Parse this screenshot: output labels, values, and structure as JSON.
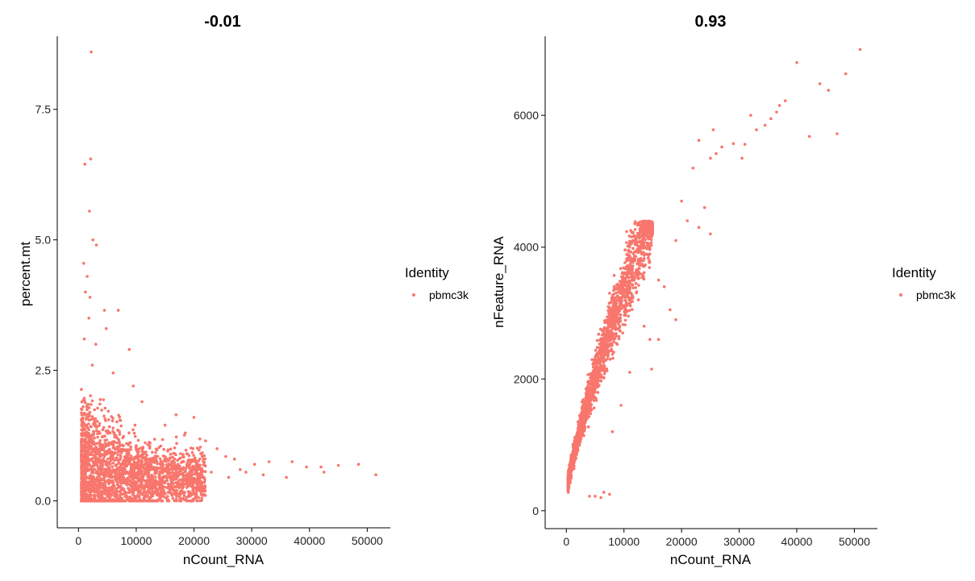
{
  "chart_data": [
    {
      "type": "scatter",
      "title": "-0.01",
      "xlabel": "nCount_RNA",
      "ylabel": "percent.mt",
      "xlim": [
        -2000,
        54000
      ],
      "ylim": [
        -0.3,
        8.9
      ],
      "xticks": [
        0,
        10000,
        20000,
        30000,
        40000,
        50000
      ],
      "xtick_labels": [
        "0",
        "10000",
        "20000",
        "30000",
        "40000",
        "50000"
      ],
      "yticks": [
        0.0,
        2.5,
        5.0,
        7.5
      ],
      "ytick_labels": [
        "0.0",
        "2.5",
        "5.0",
        "7.5"
      ],
      "legend": {
        "title": "Identity",
        "items": [
          "pbmc3k"
        ],
        "placement": "right"
      },
      "series": [
        {
          "name": "pbmc3k",
          "color": "#F8766D",
          "points": [
            [
              2200,
              8.6
            ],
            [
              1100,
              6.45
            ],
            [
              2100,
              6.55
            ],
            [
              1900,
              5.55
            ],
            [
              2500,
              5.0
            ],
            [
              3100,
              4.9
            ],
            [
              900,
              4.55
            ],
            [
              1500,
              4.3
            ],
            [
              1200,
              4.0
            ],
            [
              2000,
              3.9
            ],
            [
              4500,
              3.65
            ],
            [
              6900,
              3.65
            ],
            [
              1800,
              3.5
            ],
            [
              4800,
              3.3
            ],
            [
              1000,
              3.1
            ],
            [
              3000,
              3.0
            ],
            [
              8800,
              2.9
            ],
            [
              2400,
              2.6
            ],
            [
              6000,
              2.45
            ],
            [
              9500,
              2.2
            ],
            [
              11000,
              1.9
            ],
            [
              16900,
              1.65
            ],
            [
              20000,
              1.6
            ],
            [
              15000,
              1.45
            ],
            [
              18500,
              1.3
            ],
            [
              22000,
              1.15
            ],
            [
              17000,
              1.1
            ],
            [
              24000,
              1.0
            ],
            [
              25500,
              0.85
            ],
            [
              27000,
              0.8
            ],
            [
              30500,
              0.7
            ],
            [
              33000,
              0.75
            ],
            [
              37000,
              0.75
            ],
            [
              39500,
              0.65
            ],
            [
              42000,
              0.65
            ],
            [
              45000,
              0.68
            ],
            [
              48500,
              0.7
            ],
            [
              51500,
              0.5
            ],
            [
              36000,
              0.45
            ],
            [
              42500,
              0.55
            ],
            [
              32000,
              0.5
            ],
            [
              29000,
              0.55
            ],
            [
              28000,
              0.6
            ],
            [
              26000,
              0.45
            ],
            [
              23000,
              0.55
            ],
            [
              21000,
              0.8
            ]
          ],
          "cloud": {
            "x_min": 500,
            "x_max": 22000,
            "y_min": 0.0,
            "y_max": 2.2,
            "n": 2600
          }
        }
      ]
    },
    {
      "type": "scatter",
      "title": "0.93",
      "xlabel": "nCount_RNA",
      "ylabel": "nFeature_RNA",
      "xlim": [
        -2000,
        54000
      ],
      "ylim": [
        -100,
        7200
      ],
      "xticks": [
        0,
        10000,
        20000,
        30000,
        40000,
        50000
      ],
      "xtick_labels": [
        "0",
        "10000",
        "20000",
        "30000",
        "40000",
        "50000"
      ],
      "yticks": [
        0,
        2000,
        4000,
        6000
      ],
      "ytick_labels": [
        "0",
        "2000",
        "4000",
        "6000"
      ],
      "legend": {
        "title": "Identity",
        "items": [
          "pbmc3k"
        ],
        "placement": "right"
      },
      "series": [
        {
          "name": "pbmc3k",
          "color": "#F8766D",
          "points": [
            [
              51000,
              7000
            ],
            [
              40000,
              6800
            ],
            [
              48500,
              6630
            ],
            [
              44000,
              6480
            ],
            [
              45500,
              6380
            ],
            [
              38000,
              6220
            ],
            [
              37000,
              6150
            ],
            [
              36500,
              6050
            ],
            [
              32000,
              6000
            ],
            [
              35500,
              5950
            ],
            [
              34500,
              5850
            ],
            [
              33000,
              5780
            ],
            [
              29000,
              5570
            ],
            [
              31000,
              5560
            ],
            [
              42200,
              5680
            ],
            [
              47000,
              5720
            ],
            [
              25500,
              5780
            ],
            [
              23000,
              5620
            ],
            [
              27000,
              5520
            ],
            [
              26000,
              5420
            ],
            [
              30500,
              5350
            ],
            [
              22000,
              5200
            ],
            [
              25000,
              5350
            ],
            [
              20000,
              4700
            ],
            [
              24000,
              4600
            ],
            [
              21000,
              4400
            ],
            [
              25000,
              4200
            ],
            [
              23000,
              4300
            ],
            [
              19000,
              4100
            ],
            [
              16000,
              3500
            ],
            [
              17000,
              3400
            ],
            [
              18000,
              3050
            ],
            [
              19000,
              2900
            ],
            [
              14500,
              2600
            ],
            [
              14800,
              2150
            ],
            [
              16000,
              2600
            ],
            [
              12500,
              3200
            ],
            [
              13500,
              2800
            ],
            [
              6000,
              200
            ],
            [
              7500,
              250
            ],
            [
              5000,
              220
            ],
            [
              4000,
              220
            ],
            [
              6500,
              280
            ],
            [
              8000,
              1200
            ],
            [
              9500,
              1600
            ],
            [
              11000,
              2100
            ]
          ],
          "cloud": {
            "x_min": 300,
            "x_max": 15000,
            "y_min": 200,
            "y_max": 4400,
            "n": 2600
          }
        }
      ]
    }
  ]
}
